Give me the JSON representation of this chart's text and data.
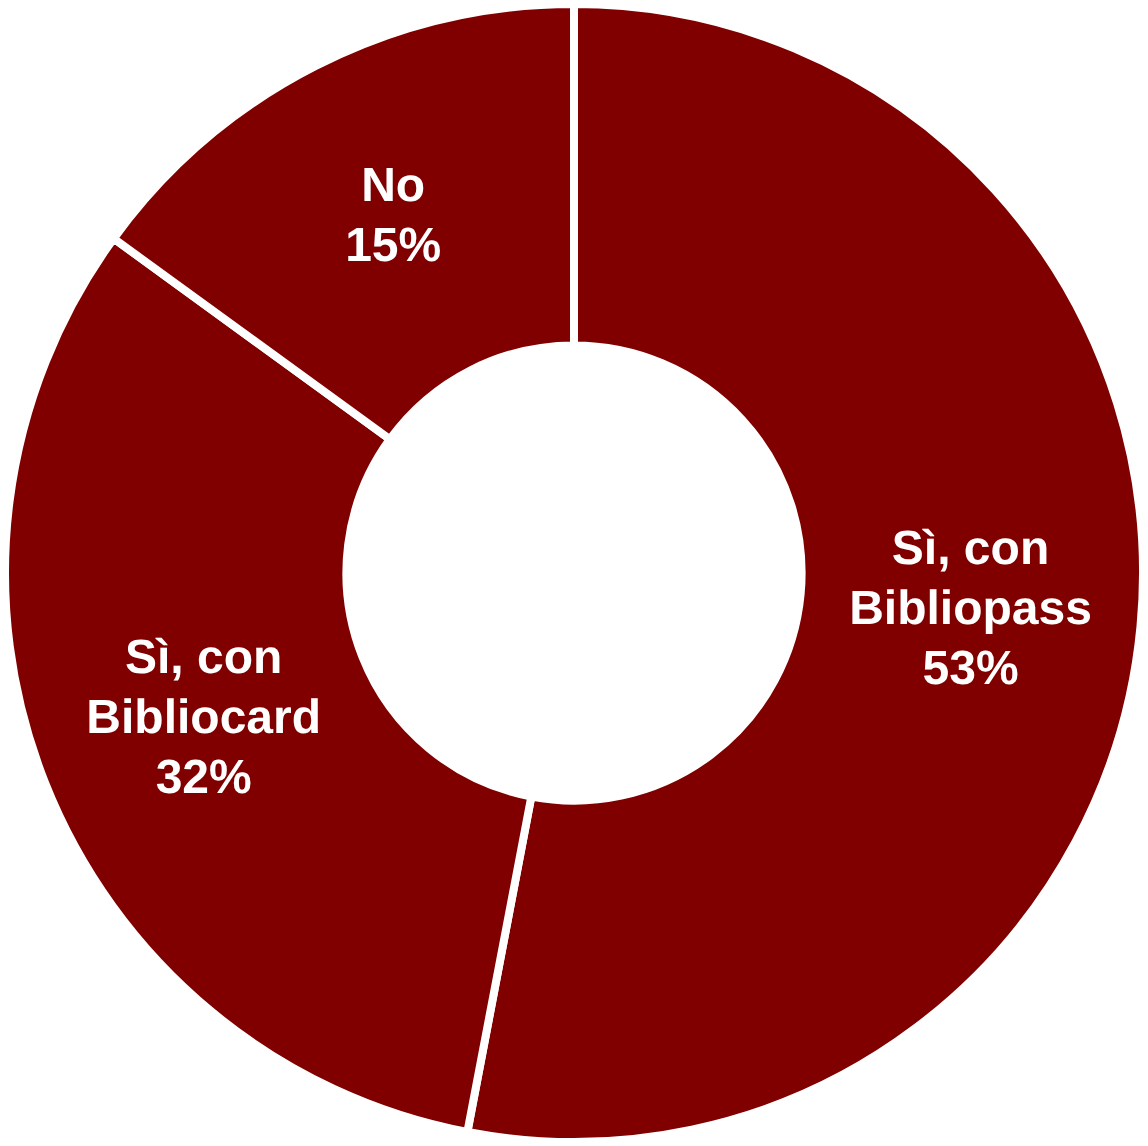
{
  "chart_data": {
    "type": "donut",
    "categories": [
      "Sì, con Bibliopass",
      "Sì, con Bibliocard",
      "No"
    ],
    "values": [
      53,
      32,
      15
    ],
    "colors": [
      "#800000",
      "#800000",
      "#800000"
    ],
    "value_labels": [
      "53%",
      "32%",
      "15%"
    ],
    "legend": false
  }
}
